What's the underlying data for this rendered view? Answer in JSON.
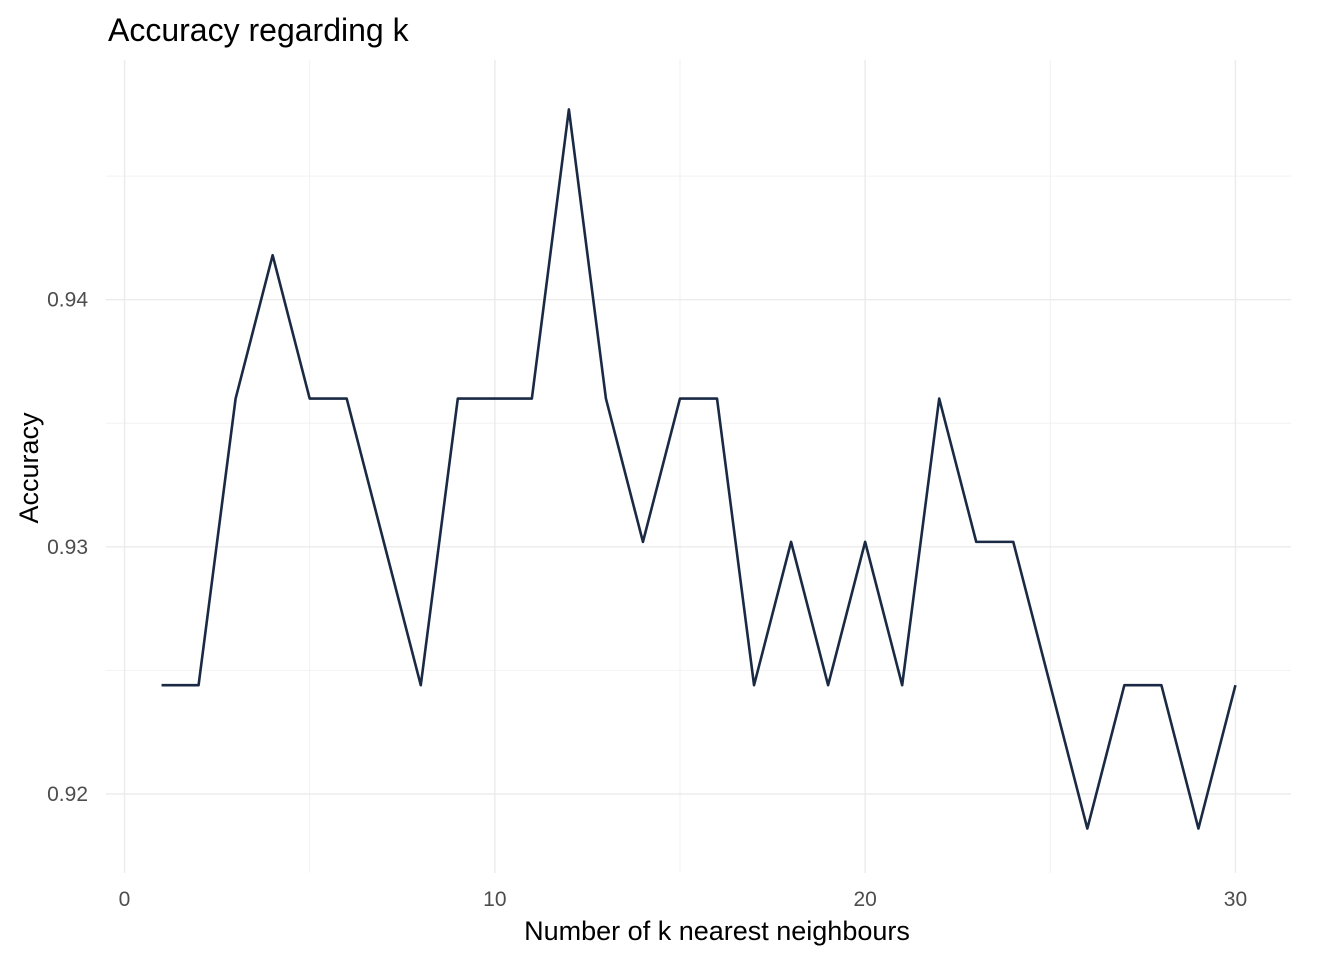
{
  "chart_data": {
    "type": "line",
    "title": "Accuracy regarding k",
    "xlabel": "Number of k nearest neighbours",
    "ylabel": "Accuracy",
    "xlim": [
      -0.5,
      31.5
    ],
    "ylim": [
      0.9168,
      0.9497
    ],
    "x_ticks": [
      0,
      10,
      20,
      30
    ],
    "x_tick_labels": [
      "0",
      "10",
      "20",
      "30"
    ],
    "x_minor_ticks": [
      5,
      15,
      25
    ],
    "y_ticks": [
      0.92,
      0.93,
      0.94
    ],
    "y_tick_labels": [
      "0.92",
      "0.93",
      "0.94"
    ],
    "y_minor_ticks": [
      0.925,
      0.935,
      0.945
    ],
    "grid": true,
    "line_color": "#1a2a44",
    "x": [
      1,
      2,
      3,
      4,
      5,
      6,
      7,
      8,
      9,
      10,
      11,
      12,
      13,
      14,
      15,
      16,
      17,
      18,
      19,
      20,
      21,
      22,
      23,
      24,
      25,
      26,
      27,
      28,
      29,
      30
    ],
    "values": [
      0.9244,
      0.9244,
      0.936,
      0.9418,
      0.936,
      0.936,
      0.9302,
      0.9244,
      0.936,
      0.936,
      0.936,
      0.9477,
      0.936,
      0.9302,
      0.936,
      0.936,
      0.9244,
      0.9302,
      0.9244,
      0.9302,
      0.9244,
      0.936,
      0.9302,
      0.9302,
      0.9244,
      0.9186,
      0.9244,
      0.9244,
      0.9186,
      0.9244
    ]
  }
}
